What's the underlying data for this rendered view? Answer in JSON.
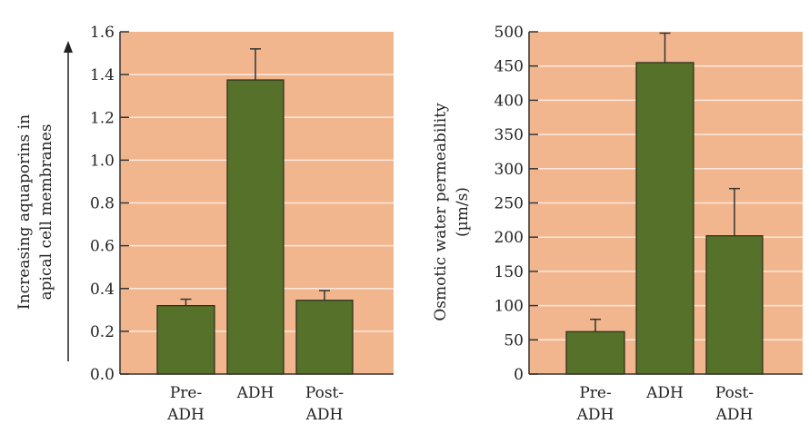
{
  "colors": {
    "plot_bg": "#f2b68e",
    "bar": "#56722a",
    "bar_edge": "#2a2a1a",
    "grid": "#fbe8dc"
  },
  "chart_data": [
    {
      "type": "bar",
      "ylabel_lines": [
        "Increasing aquaporins in",
        "apical cell membranes"
      ],
      "ylabel_arrow": true,
      "ylim": [
        0,
        1.6
      ],
      "yticks": [
        0,
        0.2,
        0.4,
        0.6,
        0.8,
        1.0,
        1.2,
        1.4,
        1.6
      ],
      "ytick_labels": [
        "0.0",
        "0.2",
        "0.4",
        "0.6",
        "0.8",
        "1.0",
        "1.2",
        "1.4",
        "1.6"
      ],
      "categories": [
        [
          "Pre-",
          "ADH"
        ],
        [
          "ADH"
        ],
        [
          "Post-",
          "ADH"
        ]
      ],
      "values": [
        0.32,
        1.375,
        0.345
      ],
      "error_upper": [
        0.35,
        1.52,
        0.39
      ],
      "grid": true
    },
    {
      "type": "bar",
      "ylabel_lines": [
        "Osmotic water permeability",
        "(µm/s)"
      ],
      "ylabel_arrow": false,
      "ylim": [
        0,
        500
      ],
      "yticks": [
        0,
        50,
        100,
        150,
        200,
        250,
        300,
        350,
        400,
        450,
        500
      ],
      "ytick_labels": [
        "0",
        "50",
        "100",
        "150",
        "200",
        "250",
        "300",
        "350",
        "400",
        "450",
        "500"
      ],
      "categories": [
        [
          "Pre-",
          "ADH"
        ],
        [
          "ADH"
        ],
        [
          "Post-",
          "ADH"
        ]
      ],
      "values": [
        62,
        455,
        202
      ],
      "error_upper": [
        80,
        498,
        271
      ],
      "grid": true
    }
  ]
}
